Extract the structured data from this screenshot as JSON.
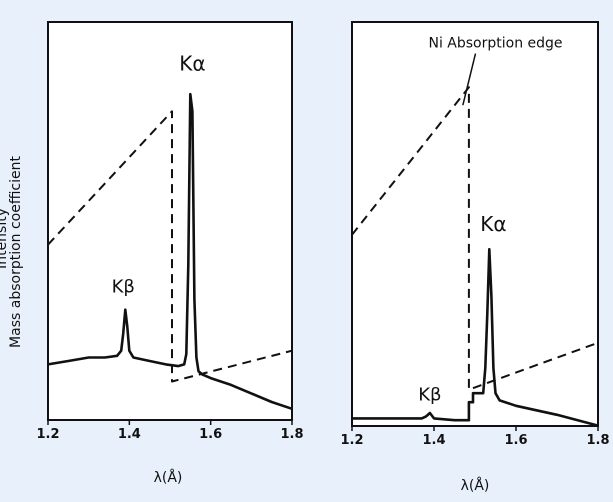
{
  "chart_data": [
    {
      "type": "line",
      "xlabel": "λ(Å)",
      "ylabel": "Mass absorption coefficient",
      "ylabel_secondary": "Intensity",
      "xlim": [
        1.2,
        1.8
      ],
      "x_ticks": [
        "1.2",
        "1.4",
        "1.6",
        "1.8"
      ],
      "ylim": [
        0,
        100
      ],
      "grid": false,
      "series": [
        {
          "style": "solid",
          "x": [
            1.2,
            1.25,
            1.3,
            1.34,
            1.37,
            1.38,
            1.385,
            1.39,
            1.395,
            1.4,
            1.41,
            1.45,
            1.49,
            1.52,
            1.535,
            1.54,
            1.545,
            1.55,
            1.555,
            1.56,
            1.565,
            1.57,
            1.58,
            1.6,
            1.65,
            1.7,
            1.75,
            1.8
          ],
          "y": [
            11.0,
            12.0,
            13.0,
            13.0,
            13.5,
            15.0,
            20.0,
            27.0,
            22.0,
            15.0,
            13.0,
            12.0,
            11.0,
            10.5,
            11.0,
            14.0,
            40.0,
            90.0,
            85.0,
            30.0,
            13.0,
            9.0,
            8.0,
            7.0,
            5.0,
            2.5,
            0.0,
            -2.0
          ]
        },
        {
          "style": "dashed",
          "x": [
            1.2,
            1.505,
            1.505,
            1.8
          ],
          "y": [
            46.0,
            85.0,
            6.0,
            15.0
          ]
        }
      ],
      "annotations": [
        {
          "text": "Kα",
          "x": 1.555,
          "y": 97.0
        },
        {
          "text": "Kβ",
          "x": 1.385,
          "y": 32.0
        }
      ]
    },
    {
      "type": "line",
      "xlabel": "λ(Å)",
      "xlim": [
        1.2,
        1.8
      ],
      "x_ticks": [
        "1.2",
        "1.4",
        "1.6",
        "1.8"
      ],
      "ylim": [
        0,
        100
      ],
      "grid": false,
      "series": [
        {
          "style": "solid",
          "x": [
            1.2,
            1.3,
            1.37,
            1.38,
            1.39,
            1.4,
            1.45,
            1.485,
            1.485,
            1.495,
            1.495,
            1.52,
            1.525,
            1.53,
            1.535,
            1.54,
            1.545,
            1.55,
            1.56,
            1.6,
            1.7,
            1.8
          ],
          "y": [
            1.0,
            1.0,
            1.0,
            1.5,
            2.5,
            1.0,
            0.5,
            0.5,
            5.5,
            5.5,
            8.0,
            8.0,
            15.0,
            30.0,
            48.0,
            35.0,
            15.0,
            8.0,
            6.0,
            4.5,
            2.0,
            -1.0
          ]
        },
        {
          "style": "dashed",
          "x": [
            1.2,
            1.485,
            1.485,
            1.8
          ],
          "y": [
            52.0,
            93.0,
            9.0,
            22.0
          ]
        }
      ],
      "annotations": [
        {
          "text": "Ni Absorption edge",
          "x": 1.55,
          "y": 104.0
        },
        {
          "text": "Kα",
          "x": 1.545,
          "y": 53.0
        },
        {
          "text": "Kβ",
          "x": 1.39,
          "y": 6.0
        }
      ]
    }
  ]
}
